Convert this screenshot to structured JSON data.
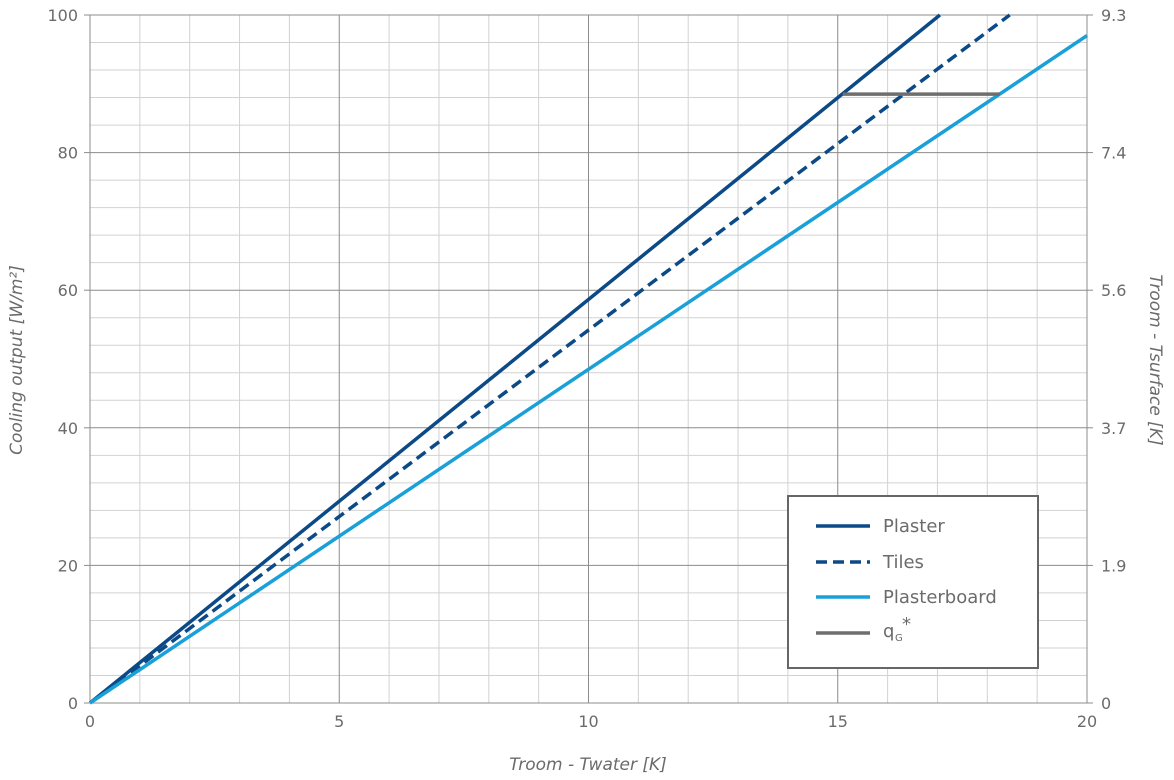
{
  "chart_data": {
    "type": "line",
    "xlabel": "Troom - Twater [K]",
    "ylabel": "Cooling output [W/m²]",
    "y2label": "Troom - Tsurface [K]",
    "xlim": [
      0,
      20
    ],
    "ylim": [
      0,
      100
    ],
    "x_ticks": [
      "0",
      "5",
      "10",
      "15",
      "20"
    ],
    "y_ticks": [
      "0",
      "20",
      "40",
      "60",
      "80",
      "100"
    ],
    "y2_ticks": [
      "0",
      "1.9",
      "3.7",
      "5.6",
      "7.4",
      "9.3"
    ],
    "grid": true,
    "legend_position": "bottom-right",
    "series": [
      {
        "name": "Plaster",
        "style": "solid",
        "color": "#0b4a86",
        "x": [
          0,
          17.05
        ],
        "y": [
          0,
          100
        ]
      },
      {
        "name": "Tiles",
        "style": "dashed",
        "color": "#0b4a86",
        "x": [
          0,
          18.45
        ],
        "y": [
          0,
          100
        ]
      },
      {
        "name": "Plasterboard",
        "style": "solid",
        "color": "#1aa0d8",
        "x": [
          0,
          20
        ],
        "y": [
          0,
          97
        ]
      },
      {
        "name": "q",
        "name_subscript": "G",
        "name_superscript": "*",
        "style": "solid",
        "color": "#6e6e6e",
        "x": [
          15.1,
          18.25
        ],
        "y": [
          88.5,
          88.5
        ]
      }
    ]
  }
}
